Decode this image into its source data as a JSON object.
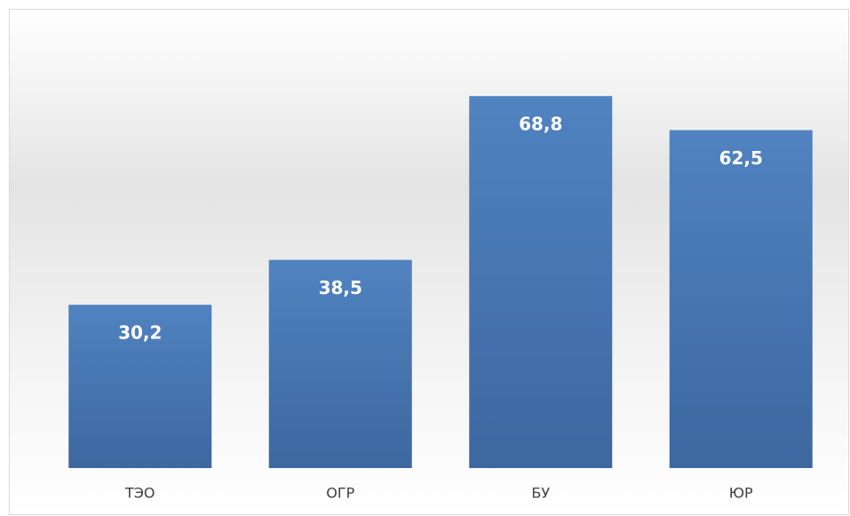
{
  "chart_data": {
    "type": "bar",
    "categories": [
      "ТЭО",
      "ОГР",
      "БУ",
      "ЮР"
    ],
    "values": [
      30.2,
      38.5,
      68.8,
      62.5
    ],
    "value_labels": [
      "30,2",
      "38,5",
      "68,8",
      "62,5"
    ],
    "color": "#4a7ab5",
    "ylim": [
      0,
      80
    ]
  }
}
